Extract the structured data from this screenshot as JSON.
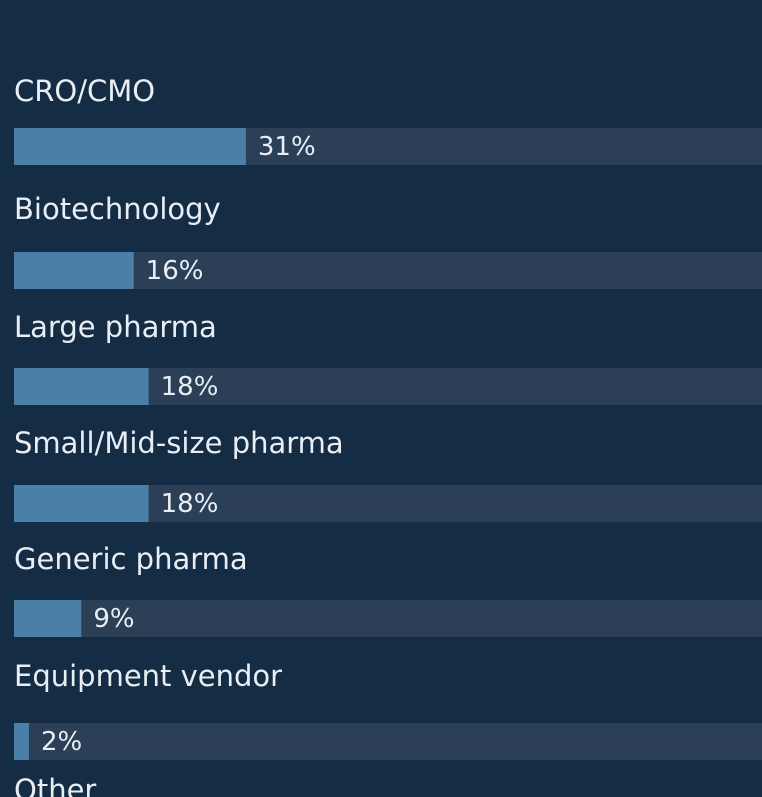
{
  "chart_data": {
    "type": "bar",
    "orientation": "horizontal",
    "categories": [
      "CRO/CMO",
      "Biotechnology",
      "Large pharma",
      "Small/Mid-size pharma",
      "Generic pharma",
      "Equipment vendor",
      "Other"
    ],
    "values": [
      31,
      16,
      18,
      18,
      9,
      2,
      null
    ],
    "value_labels": [
      "31%",
      "16%",
      "18%",
      "18%",
      "9%",
      "2%",
      null
    ],
    "xlim": [
      0,
      100
    ],
    "color": "#4a7fa8",
    "track_color": "#2b3f56"
  }
}
